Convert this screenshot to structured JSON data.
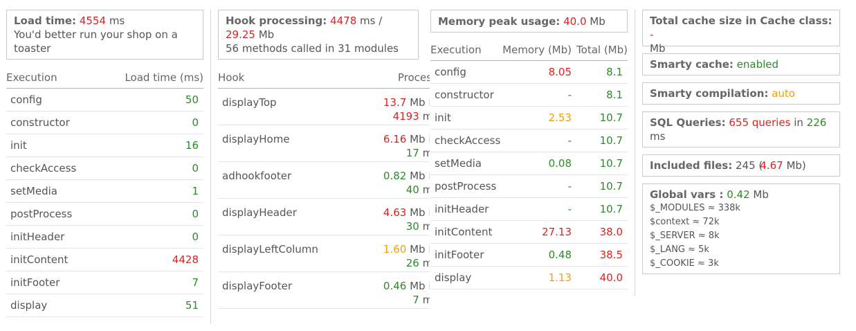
{
  "load": {
    "label": "Load time:",
    "value": "4554",
    "unit": "ms",
    "note": "You'd better run your shop on a toaster"
  },
  "exec_table": {
    "headers": [
      "Execution",
      "Load time (ms)"
    ],
    "rows": [
      {
        "name": "config",
        "value": "50",
        "color": "#2a8a2a"
      },
      {
        "name": "constructor",
        "value": "0",
        "color": "#2a8a2a"
      },
      {
        "name": "init",
        "value": "16",
        "color": "#2a8a2a"
      },
      {
        "name": "checkAccess",
        "value": "0",
        "color": "#2a8a2a"
      },
      {
        "name": "setMedia",
        "value": "1",
        "color": "#2a8a2a"
      },
      {
        "name": "postProcess",
        "value": "0",
        "color": "#2a8a2a"
      },
      {
        "name": "initHeader",
        "value": "0",
        "color": "#2a8a2a"
      },
      {
        "name": "initContent",
        "value": "4428",
        "color": "#e02020"
      },
      {
        "name": "initFooter",
        "value": "7",
        "color": "#2a8a2a"
      },
      {
        "name": "display",
        "value": "51",
        "color": "#2a8a2a"
      }
    ]
  },
  "hook": {
    "label": "Hook processing:",
    "time": "4478",
    "time_unit": "ms /",
    "mem": "29.25",
    "mem_unit": "Mb",
    "summary": "56 methods called in 31 modules"
  },
  "hook_table": {
    "headers": [
      "Hook",
      "Processing"
    ],
    "rows": [
      {
        "name": "displayTop",
        "mem": "13.7",
        "mem_color": "#e02020",
        "mem_suffix": "Mb in",
        "time": "4193",
        "time_color": "#e02020",
        "time_suffix": "ms"
      },
      {
        "name": "displayHome",
        "mem": "6.16",
        "mem_color": "#e02020",
        "mem_suffix": "Mb in",
        "time": "17",
        "time_color": "#2a8a2a",
        "time_suffix": "ms"
      },
      {
        "name": "adhookfooter",
        "mem": "0.82",
        "mem_color": "#2a8a2a",
        "mem_suffix": "Mb in",
        "time": "40",
        "time_color": "#2a8a2a",
        "time_suffix": "ms"
      },
      {
        "name": "displayHeader",
        "mem": "4.63",
        "mem_color": "#e02020",
        "mem_suffix": "Mb in",
        "time": "30",
        "time_color": "#2a8a2a",
        "time_suffix": "ms"
      },
      {
        "name": "displayLeftColumn",
        "mem": "1.60",
        "mem_color": "#f0a000",
        "mem_suffix": "Mb in",
        "time": "26",
        "time_color": "#2a8a2a",
        "time_suffix": "ms"
      },
      {
        "name": "displayFooter",
        "mem": "0.46",
        "mem_color": "#2a8a2a",
        "mem_suffix": "Mb in",
        "time": "7",
        "time_color": "#2a8a2a",
        "time_suffix": "ms"
      }
    ]
  },
  "memory": {
    "label": "Memory peak usage:",
    "value": "40.0",
    "unit": "Mb"
  },
  "mem_table": {
    "headers": [
      "Execution",
      "Memory (Mb)",
      "Total (Mb)"
    ],
    "rows": [
      {
        "name": "config",
        "mem": "8.05",
        "mem_color": "#e02020",
        "total": "8.1",
        "total_color": "#2a8a2a"
      },
      {
        "name": "constructor",
        "mem": "-",
        "mem_color": "#2a8a2a",
        "total": "8.1",
        "total_color": "#2a8a2a"
      },
      {
        "name": "init",
        "mem": "2.53",
        "mem_color": "#f0a000",
        "total": "10.7",
        "total_color": "#2a8a2a"
      },
      {
        "name": "checkAccess",
        "mem": "-",
        "mem_color": "#2a8a2a",
        "total": "10.7",
        "total_color": "#2a8a2a"
      },
      {
        "name": "setMedia",
        "mem": "0.08",
        "mem_color": "#2a8a2a",
        "total": "10.7",
        "total_color": "#2a8a2a"
      },
      {
        "name": "postProcess",
        "mem": "-",
        "mem_color": "#2a8a2a",
        "total": "10.7",
        "total_color": "#2a8a2a"
      },
      {
        "name": "initHeader",
        "mem": "-",
        "mem_color": "#2a8a2a",
        "total": "10.7",
        "total_color": "#2a8a2a"
      },
      {
        "name": "initContent",
        "mem": "27.13",
        "mem_color": "#e02020",
        "total": "38.0",
        "total_color": "#e02020"
      },
      {
        "name": "initFooter",
        "mem": "0.48",
        "mem_color": "#2a8a2a",
        "total": "38.5",
        "total_color": "#e02020"
      },
      {
        "name": "display",
        "mem": "1.13",
        "mem_color": "#f0a000",
        "total": "40.0",
        "total_color": "#e02020"
      }
    ]
  },
  "cache": {
    "label": "Total cache size in Cache class:",
    "value": "-",
    "unit": "Mb"
  },
  "smarty_cache": {
    "label": "Smarty cache:",
    "value": "enabled"
  },
  "smarty_compile": {
    "label": "Smarty compilation:",
    "value": "auto"
  },
  "sql": {
    "label": "SQL Queries:",
    "count": "655 queries",
    "in_word": "in",
    "time": "226",
    "unit": "ms"
  },
  "files": {
    "label": "Included files:",
    "count": "245",
    "open": "(",
    "size": "4.67",
    "unit": "Mb)"
  },
  "globals": {
    "label": "Global vars :",
    "value": "0.42",
    "unit": "Mb",
    "items": [
      "$_MODULES ≈ 338k",
      "$context ≈ 72k",
      "$_SERVER ≈ 8k",
      "$_LANG ≈ 5k",
      "$_COOKIE ≈ 3k"
    ]
  },
  "colors": {
    "good": "#2a8a2a",
    "warn": "#f0a000",
    "bad": "#e02020",
    "border": "#c9c9c9"
  }
}
